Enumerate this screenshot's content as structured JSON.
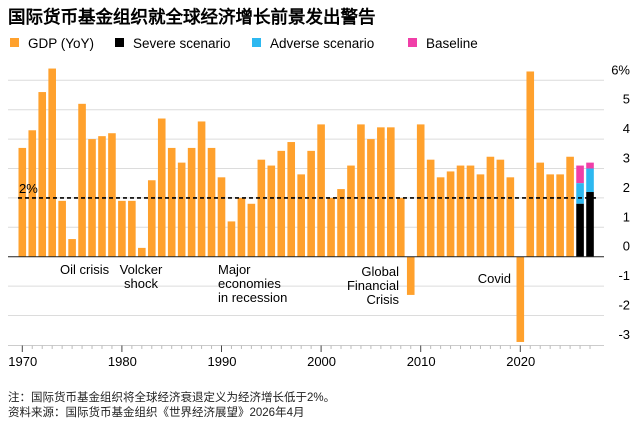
{
  "chart_data": {
    "type": "bar",
    "title": "国际货币基金组织就全球经济增长前景发出警告",
    "legend": [
      {
        "name": "GDP (YoY)",
        "color": "#FFA12D"
      },
      {
        "name": "Severe scenario",
        "color": "#000000"
      },
      {
        "name": "Adverse scenario",
        "color": "#2DB8F0"
      },
      {
        "name": "Baseline",
        "color": "#F03FA8"
      }
    ],
    "legend_placement": "top-left",
    "x": [
      1970,
      1971,
      1972,
      1973,
      1974,
      1975,
      1976,
      1977,
      1978,
      1979,
      1980,
      1981,
      1982,
      1983,
      1984,
      1985,
      1986,
      1987,
      1988,
      1989,
      1990,
      1991,
      1992,
      1993,
      1994,
      1995,
      1996,
      1997,
      1998,
      1999,
      2000,
      2001,
      2002,
      2003,
      2004,
      2005,
      2006,
      2007,
      2008,
      2009,
      2010,
      2011,
      2012,
      2013,
      2014,
      2015,
      2016,
      2017,
      2018,
      2019,
      2020,
      2021,
      2022,
      2023,
      2024,
      2025
    ],
    "series": [
      {
        "name": "GDP (YoY)",
        "values": [
          3.7,
          4.3,
          5.6,
          6.4,
          1.9,
          0.6,
          5.2,
          4.0,
          4.1,
          4.2,
          1.9,
          1.9,
          0.3,
          2.6,
          4.7,
          3.7,
          3.2,
          3.7,
          4.6,
          3.7,
          2.7,
          1.2,
          2.0,
          1.8,
          3.3,
          3.1,
          3.6,
          3.9,
          2.8,
          3.6,
          4.5,
          2.0,
          2.3,
          3.1,
          4.5,
          4.0,
          4.4,
          4.4,
          2.0,
          -1.3,
          4.5,
          3.3,
          2.7,
          2.9,
          3.1,
          3.1,
          2.8,
          3.4,
          3.3,
          2.7,
          -2.9,
          6.3,
          3.2,
          2.8,
          2.8,
          3.4
        ]
      }
    ],
    "scenarios": {
      "x": [
        2026,
        2027
      ],
      "Severe scenario": [
        1.8,
        2.2
      ],
      "Adverse scenario": [
        2.5,
        3.0
      ],
      "Baseline": [
        3.1,
        3.2
      ]
    },
    "threshold": {
      "value": 2,
      "label": "2%"
    },
    "annotations": [
      {
        "year": 1974,
        "lines": [
          "Oil crisis"
        ]
      },
      {
        "year": 1982,
        "lines": [
          "Volcker",
          "shock"
        ]
      },
      {
        "year": 1991,
        "lines": [
          "Major",
          "economies",
          "in recession"
        ]
      },
      {
        "year": 2009,
        "lines": [
          "Global",
          "Financial",
          "Crisis"
        ]
      },
      {
        "year": 2020,
        "lines": [
          "Covid"
        ]
      }
    ],
    "x_ticks": [
      "1970",
      "1980",
      "1990",
      "2000",
      "2010",
      "2020"
    ],
    "y_ticks": [
      "6%",
      "5",
      "4",
      "3",
      "2",
      "1",
      "0",
      "-1",
      "-2",
      "-3"
    ],
    "ylim": [
      -3,
      6
    ],
    "xlabel": "",
    "ylabel": "",
    "grid": true
  },
  "notes": {
    "note": "注：国际货币基金组织将全球经济衰退定义为经济增长低于2%。",
    "source": "资料来源：国际货币基金组织《世界经济展望》2026年4月"
  }
}
